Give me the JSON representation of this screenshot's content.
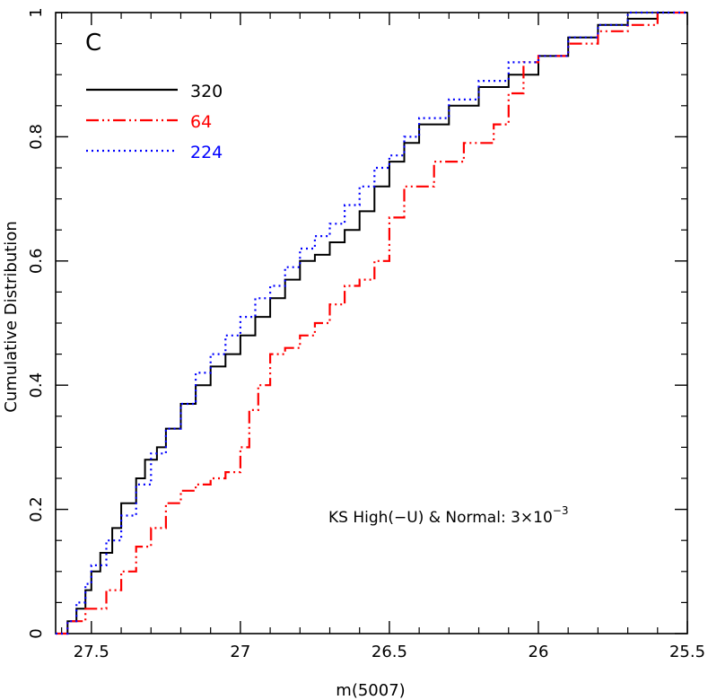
{
  "chart_data": {
    "type": "line",
    "panel_label": "C",
    "xlabel": "m(5007)",
    "ylabel": "Cumulative Distribution",
    "xlim": [
      27.62,
      25.5
    ],
    "ylim": [
      0,
      1.0
    ],
    "x_reversed": true,
    "x_ticks": [
      27.5,
      27,
      26.5,
      26,
      25.5
    ],
    "x_tick_labels": [
      "27.5",
      "27",
      "26.5",
      "26",
      "25.5"
    ],
    "y_ticks": [
      0,
      0.2,
      0.4,
      0.6,
      0.8,
      1
    ],
    "y_tick_labels": [
      "0",
      "0.2",
      "0.4",
      "0.6",
      "0.8",
      "1"
    ],
    "annotation": {
      "text": "KS High(−U) & Normal: 3×10",
      "superscript": "−3"
    },
    "series": [
      {
        "name": "320",
        "color": "#000000",
        "style": "solid",
        "x": [
          27.62,
          27.58,
          27.55,
          27.52,
          27.5,
          27.47,
          27.43,
          27.4,
          27.35,
          27.32,
          27.28,
          27.25,
          27.2,
          27.15,
          27.1,
          27.05,
          27.0,
          26.95,
          26.9,
          26.85,
          26.8,
          26.75,
          26.7,
          26.65,
          26.6,
          26.55,
          26.5,
          26.45,
          26.4,
          26.3,
          26.2,
          26.1,
          26.0,
          25.9,
          25.8,
          25.7,
          25.6,
          25.5
        ],
        "values": [
          0.0,
          0.02,
          0.04,
          0.07,
          0.1,
          0.13,
          0.17,
          0.21,
          0.25,
          0.28,
          0.3,
          0.33,
          0.37,
          0.4,
          0.43,
          0.45,
          0.48,
          0.51,
          0.54,
          0.57,
          0.6,
          0.61,
          0.63,
          0.65,
          0.68,
          0.72,
          0.76,
          0.79,
          0.82,
          0.85,
          0.88,
          0.9,
          0.93,
          0.96,
          0.98,
          0.99,
          1.0,
          1.0
        ]
      },
      {
        "name": "64",
        "color": "#ff0000",
        "style": "dash-dot-dot",
        "x": [
          27.62,
          27.58,
          27.52,
          27.45,
          27.4,
          27.35,
          27.3,
          27.25,
          27.2,
          27.15,
          27.1,
          27.05,
          27.0,
          26.97,
          26.94,
          26.9,
          26.85,
          26.8,
          26.75,
          26.7,
          26.65,
          26.6,
          26.55,
          26.5,
          26.45,
          26.35,
          26.25,
          26.15,
          26.1,
          26.05,
          26.0,
          25.9,
          25.8,
          25.7,
          25.6,
          25.5
        ],
        "values": [
          0.0,
          0.02,
          0.04,
          0.07,
          0.1,
          0.14,
          0.17,
          0.21,
          0.23,
          0.24,
          0.25,
          0.26,
          0.3,
          0.36,
          0.4,
          0.45,
          0.46,
          0.48,
          0.5,
          0.53,
          0.56,
          0.57,
          0.6,
          0.67,
          0.72,
          0.76,
          0.79,
          0.82,
          0.87,
          0.92,
          0.93,
          0.95,
          0.97,
          0.98,
          1.0,
          1.0
        ]
      },
      {
        "name": "224",
        "color": "#0000ff",
        "style": "dotted",
        "x": [
          27.62,
          27.58,
          27.55,
          27.52,
          27.5,
          27.45,
          27.4,
          27.35,
          27.3,
          27.25,
          27.2,
          27.15,
          27.1,
          27.05,
          27.0,
          26.95,
          26.9,
          26.85,
          26.8,
          26.75,
          26.7,
          26.65,
          26.6,
          26.55,
          26.5,
          26.45,
          26.4,
          26.3,
          26.2,
          26.1,
          26.0,
          25.9,
          25.8,
          25.7,
          25.6,
          25.5
        ],
        "values": [
          0.0,
          0.02,
          0.05,
          0.08,
          0.11,
          0.15,
          0.19,
          0.24,
          0.29,
          0.33,
          0.37,
          0.42,
          0.45,
          0.48,
          0.51,
          0.54,
          0.56,
          0.59,
          0.62,
          0.64,
          0.66,
          0.69,
          0.72,
          0.75,
          0.77,
          0.8,
          0.83,
          0.86,
          0.89,
          0.92,
          0.93,
          0.96,
          0.98,
          1.0,
          1.0,
          1.0
        ]
      }
    ]
  }
}
